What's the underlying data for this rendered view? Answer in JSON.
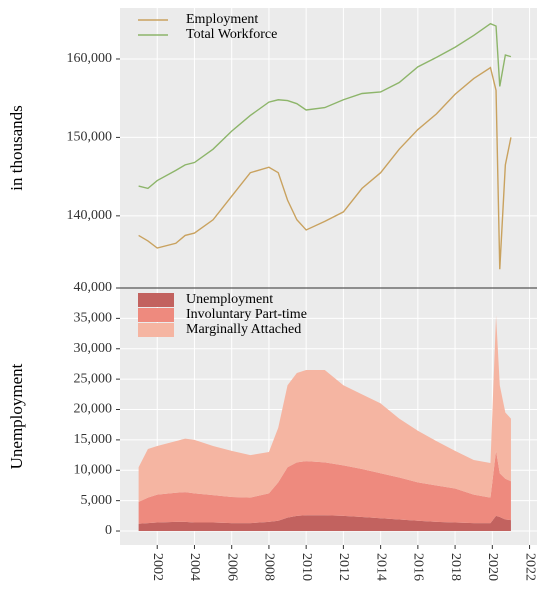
{
  "chart_data": [
    {
      "type": "line",
      "ylabel": "in thousands",
      "x": [
        2001,
        2001.5,
        2002,
        2003,
        2003.5,
        2004,
        2005,
        2006,
        2007,
        2008,
        2008.5,
        2009,
        2009.5,
        2010,
        2011,
        2012,
        2013,
        2014,
        2015,
        2016,
        2017,
        2018,
        2019,
        2019.9,
        2020.2,
        2020.4,
        2020.7,
        2021
      ],
      "series": [
        {
          "name": "Employment",
          "color": "#c9a25f",
          "values": [
            137500,
            136800,
            135900,
            136500,
            137500,
            137800,
            139500,
            142500,
            145500,
            146200,
            145500,
            142000,
            139500,
            138200,
            139300,
            140500,
            143500,
            145500,
            148500,
            151000,
            153000,
            155500,
            157500,
            158900,
            156000,
            133200,
            146500,
            150000
          ]
        },
        {
          "name": "Total Workforce",
          "color": "#8db56a",
          "values": [
            143800,
            143500,
            144500,
            145800,
            146500,
            146800,
            148500,
            150800,
            152800,
            154500,
            154800,
            154700,
            154300,
            153500,
            153800,
            154800,
            155600,
            155800,
            157000,
            159000,
            160200,
            161500,
            163000,
            164500,
            164200,
            156500,
            160500,
            160300
          ]
        }
      ],
      "xlim": [
        2000,
        2022.4
      ],
      "xticks": [
        2002,
        2004,
        2006,
        2008,
        2010,
        2012,
        2014,
        2016,
        2018,
        2020,
        2022
      ],
      "ylim": [
        130800,
        166500
      ],
      "yticks": [
        {
          "value": 140000,
          "label": "140,000"
        },
        {
          "value": 150000,
          "label": "150,000"
        },
        {
          "value": 160000,
          "label": "160,000"
        }
      ],
      "grid": true,
      "legend": "upper left"
    },
    {
      "type": "area",
      "stacked": true,
      "ylabel": "Unemployment",
      "x": [
        2001,
        2001.5,
        2002,
        2003,
        2003.5,
        2004,
        2005,
        2006,
        2007,
        2008,
        2008.5,
        2009,
        2009.5,
        2010,
        2011,
        2012,
        2013,
        2014,
        2015,
        2016,
        2017,
        2018,
        2019,
        2019.9,
        2020.2,
        2020.4,
        2020.7,
        2021
      ],
      "series": [
        {
          "name": "Unemployment",
          "color": "#c2625f",
          "values": [
            1200,
            1300,
            1400,
            1500,
            1500,
            1400,
            1400,
            1300,
            1300,
            1500,
            1700,
            2200,
            2500,
            2600,
            2600,
            2500,
            2300,
            2100,
            1900,
            1700,
            1500,
            1400,
            1300,
            1300,
            2500,
            2300,
            1900,
            1800
          ]
        },
        {
          "name": "Involuntary Part-time",
          "color": "#ee8a7e",
          "values": [
            3600,
            4200,
            4600,
            4800,
            4900,
            4800,
            4500,
            4300,
            4200,
            4700,
            6300,
            8300,
            8800,
            8900,
            8700,
            8300,
            7900,
            7400,
            6900,
            6300,
            6000,
            5600,
            4700,
            4200,
            10700,
            7200,
            6700,
            6400
          ]
        },
        {
          "name": "Marginally Attached",
          "color": "#f5b5a2",
          "values": [
            5700,
            8000,
            8000,
            8500,
            8800,
            8800,
            8100,
            7600,
            7000,
            6800,
            9000,
            13500,
            14700,
            15000,
            15200,
            13200,
            12300,
            11500,
            9700,
            8500,
            7300,
            6200,
            5700,
            5700,
            22300,
            14500,
            10900,
            10300
          ]
        }
      ],
      "xlim": [
        2000,
        2022.4
      ],
      "xticks": [
        2002,
        2004,
        2006,
        2008,
        2010,
        2012,
        2014,
        2016,
        2018,
        2020,
        2022
      ],
      "ylim": [
        -2300,
        40000
      ],
      "yticks": [
        0,
        {
          "value": 5000,
          "label": "5,000"
        },
        {
          "value": 10000,
          "label": "10,000"
        },
        {
          "value": 15000,
          "label": "15,000"
        },
        {
          "value": 20000,
          "label": "20,000"
        },
        {
          "value": 25000,
          "label": "25,000"
        },
        {
          "value": 30000,
          "label": "30,000"
        },
        {
          "value": 35000,
          "label": "35,000"
        },
        {
          "value": 40000,
          "label": "40,000"
        }
      ],
      "grid": true,
      "legend": "upper left"
    }
  ]
}
